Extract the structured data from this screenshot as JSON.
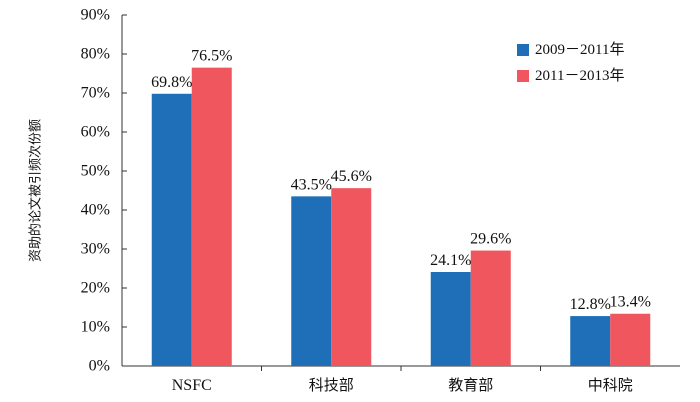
{
  "chart_data": {
    "type": "bar",
    "categories": [
      "NSFC",
      "科技部",
      "教育部",
      "中科院"
    ],
    "series": [
      {
        "name": "2009－2011年",
        "values": [
          69.8,
          43.5,
          24.1,
          12.8
        ],
        "color": "#1f6fb8",
        "labels": [
          "69.8%",
          "43.5%",
          "24.1%",
          "12.8%"
        ]
      },
      {
        "name": "2011－2013年",
        "values": [
          76.5,
          45.6,
          29.6,
          13.4
        ],
        "color": "#f0565e",
        "labels": [
          "76.5%",
          "45.6%",
          "29.6%",
          "13.4%"
        ]
      }
    ],
    "ylabel": "资助的论文被引频次份额",
    "ylim": [
      0,
      90
    ],
    "yticks": [
      0,
      10,
      20,
      30,
      40,
      50,
      60,
      70,
      80,
      90
    ],
    "ytick_labels": [
      "0%",
      "10%",
      "20%",
      "30%",
      "40%",
      "50%",
      "60%",
      "70%",
      "80%",
      "90%"
    ],
    "legend_position": "top-right",
    "grid": false
  }
}
